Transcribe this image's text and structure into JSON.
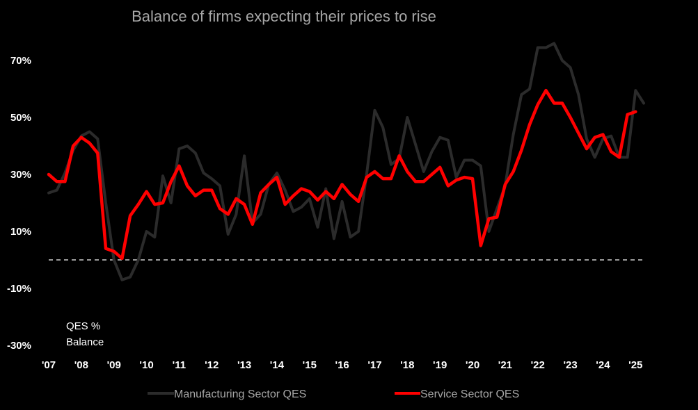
{
  "chart_data": {
    "type": "line",
    "title": "Balance of firms expecting their prices to rise",
    "annotation": [
      "QES %",
      "Balance"
    ],
    "x_start": 2007.0,
    "x_step": 0.25,
    "xlim": [
      2007.0,
      2025.25
    ],
    "ylim": [
      -30,
      80
    ],
    "y_ticks": [
      70,
      50,
      30,
      10,
      -10,
      -30
    ],
    "y_tick_labels": [
      "70%",
      "50%",
      "30%",
      "10%",
      "-10%",
      "-30%"
    ],
    "x_ticks": [
      2007,
      2008,
      2009,
      2010,
      2011,
      2012,
      2013,
      2014,
      2015,
      2016,
      2017,
      2018,
      2019,
      2020,
      2021,
      2022,
      2023,
      2024,
      2025
    ],
    "x_tick_labels": [
      "'07",
      "'08",
      "'09",
      "'10",
      "'11",
      "'12",
      "'13",
      "'14",
      "'15",
      "'16",
      "'17",
      "'18",
      "'19",
      "'20",
      "'21",
      "'22",
      "'23",
      "'24",
      "'25"
    ],
    "reference_line": 0,
    "legend_position": "bottom",
    "series": [
      {
        "name": "Manufacturing Sector QES",
        "color": "#2b2b2b",
        "values": [
          23.5,
          24.5,
          30.5,
          38.5,
          43.5,
          45.0,
          42.5,
          20.0,
          0.0,
          -7.0,
          -6.0,
          0.0,
          10.0,
          8.0,
          29.5,
          20.0,
          39.0,
          40.0,
          37.5,
          30.5,
          28.5,
          26.0,
          9.0,
          16.0,
          36.5,
          13.0,
          16.0,
          26.5,
          30.5,
          24.5,
          17.0,
          18.5,
          21.5,
          11.5,
          25.0,
          7.5,
          20.5,
          8.0,
          10.0,
          30.0,
          52.5,
          46.5,
          33.5,
          35.5,
          50.0,
          40.5,
          31.0,
          38.0,
          43.0,
          42.0,
          29.0,
          35.0,
          35.0,
          33.0,
          10.0,
          18.0,
          26.0,
          44.0,
          58.0,
          60.0,
          74.5,
          74.5,
          76.0,
          70.0,
          67.5,
          58.0,
          42.5,
          36.0,
          42.5,
          43.5,
          36.0,
          36.0,
          59.5,
          55.0
        ]
      },
      {
        "name": "Service Sector QES",
        "color": "#ff0000",
        "values": [
          30.0,
          27.5,
          27.5,
          40.0,
          43.0,
          41.0,
          37.5,
          4.0,
          3.0,
          0.5,
          15.5,
          19.5,
          24.0,
          19.5,
          20.0,
          27.5,
          33.0,
          26.0,
          22.5,
          24.5,
          24.5,
          18.0,
          16.0,
          21.5,
          19.5,
          12.5,
          23.5,
          26.5,
          29.0,
          19.5,
          22.5,
          25.0,
          24.0,
          21.0,
          24.0,
          21.5,
          26.5,
          23.0,
          20.5,
          29.0,
          31.0,
          28.5,
          28.5,
          36.5,
          31.0,
          27.5,
          27.5,
          30.0,
          32.5,
          26.0,
          28.0,
          29.0,
          28.5,
          5.0,
          14.5,
          15.0,
          26.5,
          31.0,
          38.5,
          47.5,
          54.5,
          59.5,
          55.0,
          55.0,
          50.0,
          44.5,
          39.0,
          43.0,
          44.0,
          38.0,
          36.0,
          51.0,
          52.0
        ]
      }
    ]
  }
}
